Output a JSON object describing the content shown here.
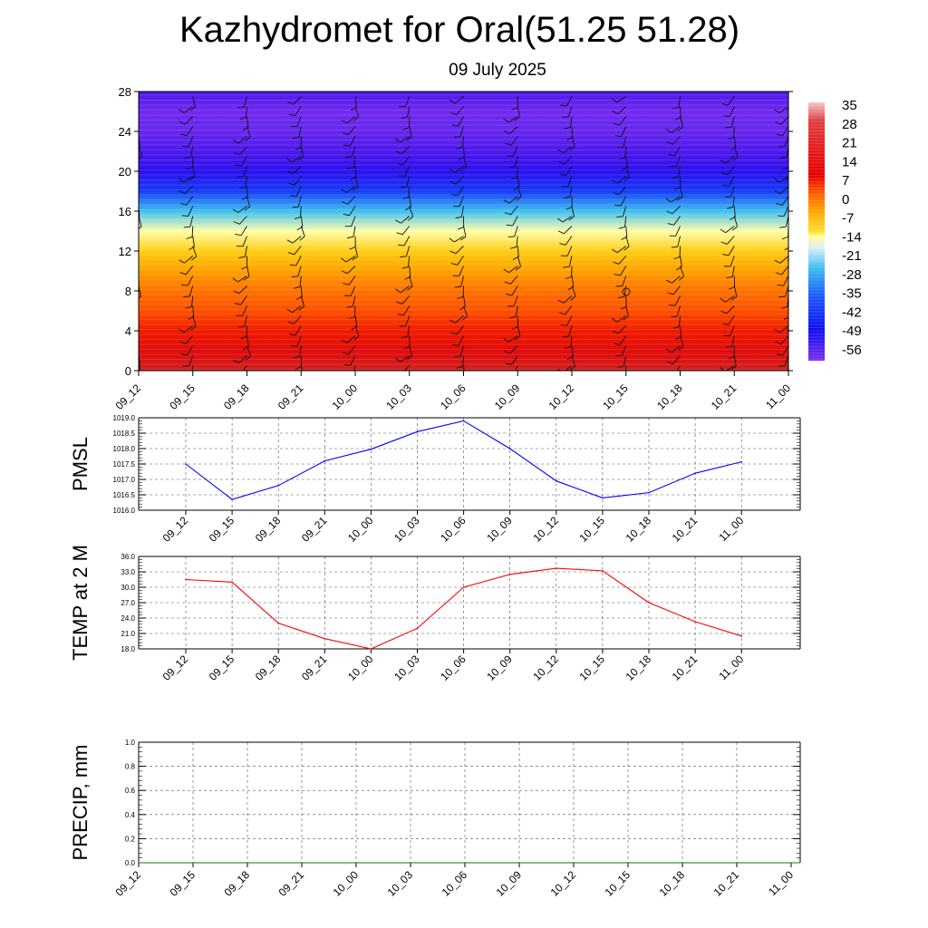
{
  "header": {
    "title": "Kazhydromet for Oral(51.25 51.28)",
    "date": "09 July 2025"
  },
  "chart_data": [
    {
      "type": "heatmap",
      "name": "temperature-cross-section",
      "x_ticks": [
        "09_12",
        "09_15",
        "09_18",
        "09_21",
        "10_00",
        "10_03",
        "10_06",
        "10_09",
        "10_12",
        "10_15",
        "10_18",
        "10_21",
        "11_00"
      ],
      "y_ticks": [
        0,
        4,
        8,
        12,
        16,
        20,
        24,
        28
      ],
      "ylim": [
        0,
        28
      ],
      "y_levels": [
        0,
        2,
        4,
        6,
        8,
        10,
        12,
        14,
        16,
        18,
        20,
        22,
        24,
        26,
        28
      ],
      "values_by_level": [
        26,
        22,
        18,
        14,
        10,
        4,
        -3,
        -12,
        -28,
        -42,
        -52,
        -57,
        -60,
        -61,
        -57
      ],
      "colorbar": {
        "labels": [
          "35",
          "28",
          "21",
          "14",
          "7",
          "0",
          "-7",
          "-14",
          "-21",
          "-28",
          "-35",
          "-42",
          "-49",
          "-56"
        ]
      },
      "wind_barbs": true
    },
    {
      "type": "line",
      "ylabel": "PMSL",
      "x": [
        "09_12",
        "09_15",
        "09_18",
        "09_21",
        "10_00",
        "10_03",
        "10_06",
        "10_09",
        "10_12",
        "10_15",
        "10_18",
        "10_21",
        "11_00"
      ],
      "ylim": [
        1016.0,
        1019.0
      ],
      "y_ticks": [
        "1016.0",
        "1016.5",
        "1017.0",
        "1017.5",
        "1018.0",
        "1018.5",
        "1019.0"
      ],
      "series": [
        {
          "color": "#0000ff",
          "values": [
            1017.5,
            1016.35,
            1016.8,
            1017.6,
            1017.98,
            1018.55,
            1018.9,
            1018.0,
            1016.95,
            1016.4,
            1016.57,
            1017.2,
            1017.57
          ]
        }
      ],
      "grid": true
    },
    {
      "type": "line",
      "ylabel": "TEMP at 2 M",
      "x": [
        "09_12",
        "09_15",
        "09_18",
        "09_21",
        "10_00",
        "10_03",
        "10_06",
        "10_09",
        "10_12",
        "10_15",
        "10_18",
        "10_21",
        "11_00"
      ],
      "ylim": [
        18.0,
        36.0
      ],
      "y_ticks": [
        "18.0",
        "21.0",
        "24.0",
        "27.0",
        "30.0",
        "33.0",
        "36.0"
      ],
      "series": [
        {
          "color": "#ff0000",
          "values": [
            31.5,
            31.0,
            23.0,
            20.0,
            18.0,
            22.0,
            30.0,
            32.5,
            33.7,
            33.2,
            27.0,
            23.3,
            20.5
          ]
        }
      ],
      "grid": true
    },
    {
      "type": "line",
      "ylabel": "PRECIP, mm",
      "x": [
        "09_12",
        "09_15",
        "09_18",
        "09_21",
        "10_00",
        "10_03",
        "10_06",
        "10_09",
        "10_12",
        "10_15",
        "10_18",
        "10_21",
        "11_00"
      ],
      "ylim": [
        0.0,
        1.0
      ],
      "y_ticks": [
        "0.0",
        "0.2",
        "0.4",
        "0.6",
        "0.8",
        "1.0"
      ],
      "series": [
        {
          "color": "#008000",
          "values": [
            0,
            0,
            0,
            0,
            0,
            0,
            0,
            0,
            0,
            0,
            0,
            0,
            0
          ]
        }
      ],
      "grid": true
    }
  ]
}
